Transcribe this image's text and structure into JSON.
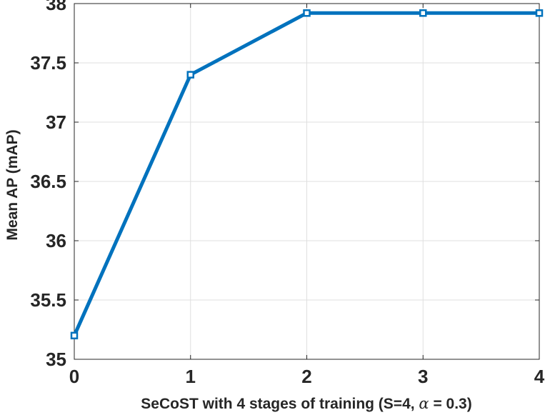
{
  "chart_data": {
    "type": "line",
    "x": [
      0,
      1,
      2,
      3,
      4
    ],
    "series": [
      {
        "values": [
          35.2,
          37.4,
          37.92,
          37.92,
          37.92
        ],
        "color": "#0072bd",
        "marker": "square"
      }
    ],
    "xticks": [
      "0",
      "1",
      "2",
      "3",
      "4"
    ],
    "yticks": [
      "35",
      "35.5",
      "36",
      "36.5",
      "37",
      "37.5",
      "38"
    ],
    "xlim": [
      0,
      4
    ],
    "ylim": [
      35,
      38
    ],
    "xlabel_prefix": "SeCoST with 4 stages of training (S=4, ",
    "xlabel_alpha": "α",
    "xlabel_suffix": " = 0.3)",
    "ylabel": "Mean AP (mAP)",
    "grid": true,
    "legend": "none"
  }
}
